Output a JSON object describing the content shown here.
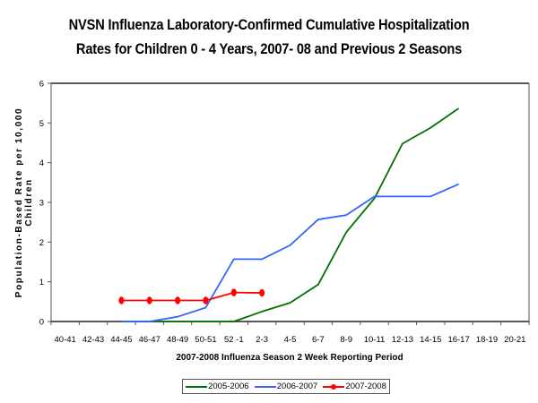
{
  "chart_data": {
    "type": "line",
    "title": [
      "NVSN Influenza Laboratory-Confirmed Cumulative Hospitalization",
      "Rates for Children 0 - 4 Years, 2007- 08 and Previous 2 Seasons"
    ],
    "xlabel": "2007-2008 Influenza Season 2 Week Reporting Period",
    "ylabel": [
      "Population-Based Rate per 10,000",
      "Children"
    ],
    "categories": [
      "40-41",
      "42-43",
      "44-45",
      "46-47",
      "48-49",
      "50-51",
      "52 -1",
      "2-3",
      "4-5",
      "6-7",
      "8-9",
      "10-11",
      "12-13",
      "14-15",
      "16-17",
      "18-19",
      "20-21"
    ],
    "ylim": [
      0,
      6
    ],
    "yticks": [
      "0",
      "1",
      "2",
      "3",
      "4",
      "5",
      "6"
    ],
    "grid": false,
    "legend_position": "bottom",
    "series": [
      {
        "name": "2005-2006",
        "color": "#007000",
        "marker": false,
        "values": [
          null,
          null,
          0,
          0,
          0,
          0,
          0,
          0.25,
          0.47,
          0.93,
          2.25,
          3.1,
          4.48,
          4.88,
          5.37,
          null,
          null
        ]
      },
      {
        "name": "2006-2007",
        "color": "#3366ff",
        "marker": false,
        "values": [
          null,
          null,
          0,
          0,
          0.12,
          0.35,
          1.57,
          1.57,
          1.92,
          2.57,
          2.68,
          3.15,
          3.15,
          3.15,
          3.46,
          null,
          null
        ]
      },
      {
        "name": "2007-2008",
        "color": "#ff0000",
        "marker": true,
        "values": [
          null,
          null,
          0.53,
          0.53,
          0.53,
          0.53,
          0.73,
          0.72,
          null,
          null,
          null,
          null,
          null,
          null,
          null,
          null,
          null
        ]
      }
    ]
  }
}
